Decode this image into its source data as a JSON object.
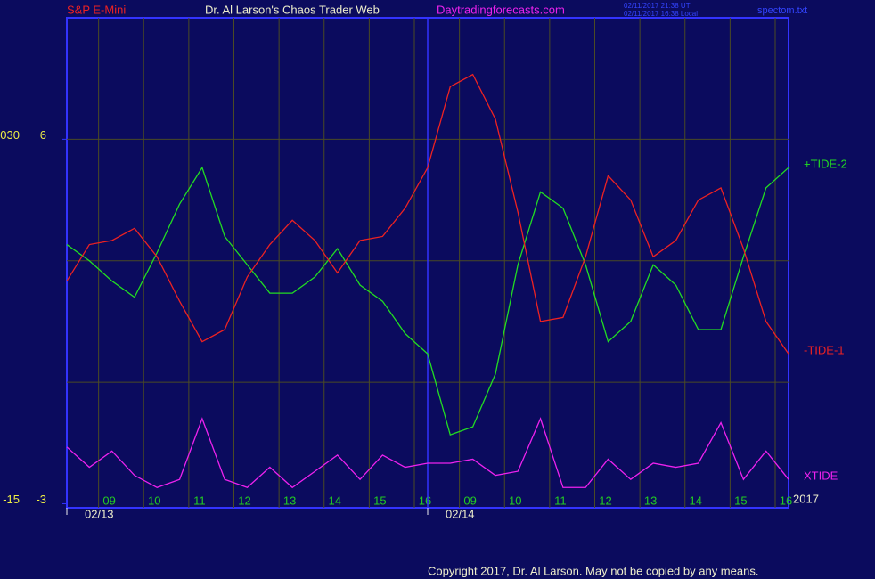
{
  "chart_data": {
    "type": "line",
    "header": {
      "symbol": "S&P E-Mini",
      "author": "Dr. Al Larson's Chaos Trader Web",
      "site": "Daytradingforecasts.com",
      "time_ut": "02/11/2017 21:38 UT",
      "time_local": "02/11/2017 16:38 Local",
      "file": "spectom.txt"
    },
    "x": [
      0,
      0.5,
      1,
      1.5,
      2,
      2.5,
      3,
      3.5,
      4,
      4.5,
      5,
      5.5,
      6,
      6.5,
      7,
      7.5,
      8,
      8.5,
      9,
      9.5,
      10,
      10.5,
      11,
      11.5,
      12,
      12.5,
      13,
      13.5,
      14,
      14.5,
      15,
      15.5,
      16
    ],
    "xlim": [
      0,
      16
    ],
    "xticks": [
      {
        "value": 1,
        "label": "09"
      },
      {
        "value": 2,
        "label": "10"
      },
      {
        "value": 3,
        "label": "11"
      },
      {
        "value": 4,
        "label": "12"
      },
      {
        "value": 5,
        "label": "13"
      },
      {
        "value": 6,
        "label": "14"
      },
      {
        "value": 7,
        "label": "15"
      },
      {
        "value": 8,
        "label": "16"
      },
      {
        "value": 9,
        "label": "09"
      },
      {
        "value": 10,
        "label": "10"
      },
      {
        "value": 11,
        "label": "11"
      },
      {
        "value": 12,
        "label": "12"
      },
      {
        "value": 13,
        "label": "13"
      },
      {
        "value": 14,
        "label": "14"
      },
      {
        "value": 15,
        "label": "15"
      },
      {
        "value": 16,
        "label": "16"
      }
    ],
    "date_ticks": [
      {
        "value": 0,
        "label": "02/13"
      },
      {
        "value": 8,
        "label": "02/14"
      }
    ],
    "year": "2017",
    "ylim": [
      -3.1,
      9
    ],
    "yticks": [
      {
        "value": 6,
        "label": "6"
      },
      {
        "value": -3,
        "label": "-3"
      }
    ],
    "outer_ytick_labels": [
      "030",
      "-15"
    ],
    "grid_y": [
      0,
      3,
      6
    ],
    "grid": true,
    "series": [
      {
        "name": "+TIDE-2",
        "color": "#22dd22",
        "values": [
          3.4,
          3.0,
          2.5,
          2.1,
          3.2,
          4.4,
          5.3,
          3.6,
          2.9,
          2.2,
          2.2,
          2.6,
          3.3,
          2.4,
          2.0,
          1.2,
          0.7,
          -1.3,
          -1.1,
          0.2,
          2.9,
          4.7,
          4.3,
          2.9,
          1.0,
          1.5,
          2.9,
          2.4,
          1.3,
          1.3,
          3.1,
          4.8,
          5.3
        ]
      },
      {
        "name": "-TIDE-1",
        "color": "#ee2222",
        "values": [
          2.5,
          3.4,
          3.5,
          3.8,
          3.1,
          2.0,
          1.0,
          1.3,
          2.6,
          3.4,
          4.0,
          3.5,
          2.7,
          3.5,
          3.6,
          4.3,
          5.3,
          7.3,
          7.6,
          6.5,
          4.2,
          1.5,
          1.6,
          3.1,
          5.1,
          4.5,
          3.1,
          3.5,
          4.5,
          4.8,
          3.3,
          1.5,
          0.7
        ]
      },
      {
        "name": "XTIDE",
        "color": "#ee22ee",
        "values": [
          -1.6,
          -2.1,
          -1.7,
          -2.3,
          -2.6,
          -2.4,
          -0.9,
          -2.4,
          -2.6,
          -2.1,
          -2.6,
          -2.2,
          -1.8,
          -2.4,
          -1.8,
          -2.1,
          -2.0,
          -2.0,
          -1.9,
          -2.3,
          -2.2,
          -0.9,
          -2.6,
          -2.6,
          -1.9,
          -2.4,
          -2.0,
          -2.1,
          -2.0,
          -1.0,
          -2.4,
          -1.7,
          -2.4
        ]
      }
    ],
    "copyright": "Copyright 2017, Dr. Al Larson. May not be copied by any means."
  }
}
